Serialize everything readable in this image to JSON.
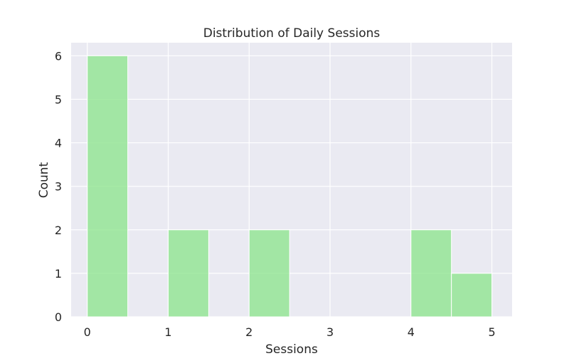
{
  "chart_data": {
    "type": "bar",
    "title": "Distribution of Daily Sessions",
    "xlabel": "Sessions",
    "ylabel": "Count",
    "bins": [
      {
        "start": 0.0,
        "end": 0.5,
        "count": 6
      },
      {
        "start": 0.5,
        "end": 1.0,
        "count": 0
      },
      {
        "start": 1.0,
        "end": 1.5,
        "count": 2
      },
      {
        "start": 1.5,
        "end": 2.0,
        "count": 0
      },
      {
        "start": 2.0,
        "end": 2.5,
        "count": 2
      },
      {
        "start": 2.5,
        "end": 3.0,
        "count": 0
      },
      {
        "start": 3.0,
        "end": 3.5,
        "count": 0
      },
      {
        "start": 3.5,
        "end": 4.0,
        "count": 0
      },
      {
        "start": 4.0,
        "end": 4.5,
        "count": 2
      },
      {
        "start": 4.5,
        "end": 5.0,
        "count": 1
      }
    ],
    "xlim": [
      -0.2,
      5.25
    ],
    "ylim": [
      0,
      6.3
    ],
    "xticks": [
      0,
      1,
      2,
      3,
      4,
      5
    ],
    "yticks": [
      0,
      1,
      2,
      3,
      4,
      5,
      6
    ],
    "grid": true,
    "colors": {
      "bar_fill": "#90e590",
      "bar_edge": "#ffffff",
      "plot_background": "#eaeaf2",
      "grid": "#ffffff"
    }
  }
}
